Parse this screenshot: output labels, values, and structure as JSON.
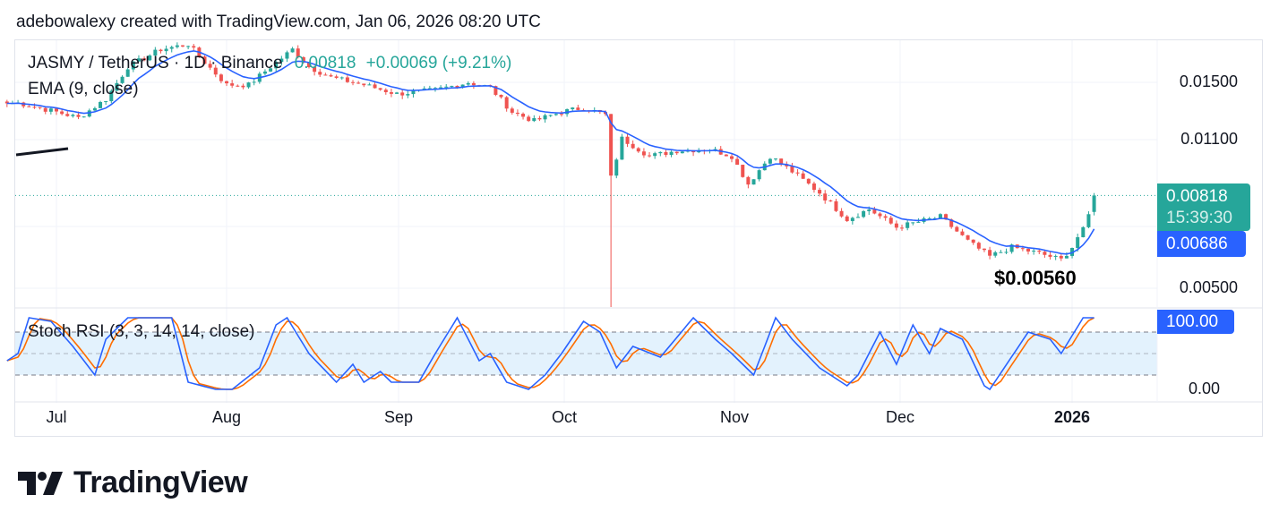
{
  "caption": "adebowalexy created with TradingView.com, Jan 06, 2026 08:20 UTC",
  "legend": {
    "symbol": "JASMY / TetherUS · 1D · Binance",
    "price": "0.00818",
    "change": "+0.00069 (+9.21%)",
    "ema": "EMA (9, close)",
    "stoch": "Stoch RSI (3, 3, 14, 14, close)"
  },
  "price_axis": [
    "0.01500",
    "0.01100",
    "0.00500"
  ],
  "tags": {
    "last_price": "0.00818",
    "countdown": "15:39:30",
    "ema_value": "0.00686",
    "stoch_value": "100.00"
  },
  "stoch_axis": [
    "0.00"
  ],
  "time_axis": [
    "Jul",
    "Aug",
    "Sep",
    "Oct",
    "Nov",
    "Dec",
    "2026"
  ],
  "annotation": "$0.00560",
  "brand": "TradingView",
  "colors": {
    "up": "#26a69a",
    "down": "#ef5350",
    "ema": "#2962ff",
    "stoch_k": "#2962ff",
    "stoch_d": "#ff6d00",
    "band": "#e3f2fd"
  },
  "chart_data": {
    "type": "candlestick",
    "scale": "log",
    "price_range": [
      0.0045,
      0.019
    ],
    "stoch_levels": [
      20,
      50,
      80
    ],
    "closes": [
      [
        "2025-06-22",
        0.0134
      ],
      [
        "2025-06-24",
        0.01344
      ],
      [
        "2025-07-01",
        0.0128
      ],
      [
        "2025-07-05",
        0.0124
      ],
      [
        "2025-07-10",
        0.0137
      ],
      [
        "2025-07-14",
        0.0163
      ],
      [
        "2025-07-20",
        0.0179
      ],
      [
        "2025-07-25",
        0.0184
      ],
      [
        "2025-07-28",
        0.0167
      ],
      [
        "2025-08-01",
        0.0148
      ],
      [
        "2025-08-05",
        0.0148
      ],
      [
        "2025-08-09",
        0.0163
      ],
      [
        "2025-08-13",
        0.0179
      ],
      [
        "2025-08-16",
        0.0163
      ],
      [
        "2025-08-20",
        0.0154
      ],
      [
        "2025-08-26",
        0.0148
      ],
      [
        "2025-09-01",
        0.0141
      ],
      [
        "2025-09-08",
        0.0144
      ],
      [
        "2025-09-14",
        0.015
      ],
      [
        "2025-09-18",
        0.0146
      ],
      [
        "2025-09-22",
        0.0128
      ],
      [
        "2025-09-26",
        0.0122
      ],
      [
        "2025-10-01",
        0.0128
      ],
      [
        "2025-10-05",
        0.0131
      ],
      [
        "2025-10-09",
        0.0126
      ],
      [
        "2025-10-10",
        0.009
      ],
      [
        "2025-10-12",
        0.0111
      ],
      [
        "2025-10-17",
        0.0101
      ],
      [
        "2025-10-22",
        0.0104
      ],
      [
        "2025-10-28",
        0.0105
      ],
      [
        "2025-11-01",
        0.0101
      ],
      [
        "2025-11-04",
        0.0087
      ],
      [
        "2025-11-08",
        0.0101
      ],
      [
        "2025-11-12",
        0.0093
      ],
      [
        "2025-11-17",
        0.0083
      ],
      [
        "2025-11-22",
        0.0072
      ],
      [
        "2025-11-26",
        0.0076
      ],
      [
        "2025-12-01",
        0.0069
      ],
      [
        "2025-12-05",
        0.0071
      ],
      [
        "2025-12-09",
        0.0073
      ],
      [
        "2025-12-14",
        0.0064
      ],
      [
        "2025-12-18",
        0.0059
      ],
      [
        "2025-12-22",
        0.0062
      ],
      [
        "2025-12-27",
        0.006
      ],
      [
        "2025-12-31",
        0.0058
      ],
      [
        "2026-01-02",
        0.0062
      ],
      [
        "2026-01-04",
        0.0069
      ],
      [
        "2026-01-05",
        0.0074
      ],
      [
        "2026-01-06",
        0.00818
      ]
    ],
    "oct10_low": 0.0045,
    "period_low": 0.0056,
    "stoch_k": [
      [
        "2025-06-22",
        40
      ],
      [
        "2025-06-24",
        50
      ],
      [
        "2025-06-26",
        100
      ],
      [
        "2025-06-30",
        95
      ],
      [
        "2025-07-04",
        60
      ],
      [
        "2025-07-08",
        20
      ],
      [
        "2025-07-10",
        70
      ],
      [
        "2025-07-14",
        100
      ],
      [
        "2025-07-17",
        100
      ],
      [
        "2025-07-22",
        100
      ],
      [
        "2025-07-23",
        70
      ],
      [
        "2025-07-25",
        10
      ],
      [
        "2025-07-30",
        0
      ],
      [
        "2025-08-02",
        0
      ],
      [
        "2025-08-07",
        30
      ],
      [
        "2025-08-10",
        90
      ],
      [
        "2025-08-12",
        100
      ],
      [
        "2025-08-16",
        50
      ],
      [
        "2025-08-21",
        10
      ],
      [
        "2025-08-24",
        35
      ],
      [
        "2025-08-26",
        10
      ],
      [
        "2025-08-29",
        25
      ],
      [
        "2025-08-31",
        10
      ],
      [
        "2025-09-05",
        10
      ],
      [
        "2025-09-08",
        50
      ],
      [
        "2025-09-12",
        100
      ],
      [
        "2025-09-16",
        40
      ],
      [
        "2025-09-18",
        50
      ],
      [
        "2025-09-21",
        10
      ],
      [
        "2025-09-25",
        0
      ],
      [
        "2025-09-28",
        20
      ],
      [
        "2025-10-01",
        50
      ],
      [
        "2025-10-05",
        95
      ],
      [
        "2025-10-08",
        80
      ],
      [
        "2025-10-11",
        30
      ],
      [
        "2025-10-14",
        60
      ],
      [
        "2025-10-19",
        45
      ],
      [
        "2025-10-25",
        100
      ],
      [
        "2025-10-29",
        70
      ],
      [
        "2025-11-01",
        50
      ],
      [
        "2025-11-05",
        20
      ],
      [
        "2025-11-09",
        100
      ],
      [
        "2025-11-12",
        70
      ],
      [
        "2025-11-17",
        30
      ],
      [
        "2025-11-22",
        5
      ],
      [
        "2025-11-24",
        20
      ],
      [
        "2025-11-28",
        80
      ],
      [
        "2025-12-01",
        35
      ],
      [
        "2025-12-04",
        90
      ],
      [
        "2025-12-07",
        50
      ],
      [
        "2025-12-09",
        85
      ],
      [
        "2025-12-13",
        70
      ],
      [
        "2025-12-17",
        5
      ],
      [
        "2025-12-18",
        0
      ],
      [
        "2025-12-25",
        80
      ],
      [
        "2025-12-29",
        70
      ],
      [
        "2025-12-31",
        50
      ],
      [
        "2026-01-04",
        100
      ],
      [
        "2026-01-06",
        100
      ]
    ]
  }
}
